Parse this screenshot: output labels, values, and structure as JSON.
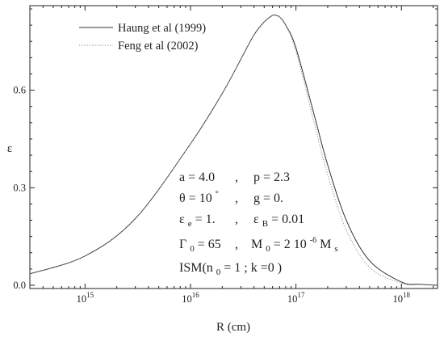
{
  "chart_data": {
    "type": "line",
    "xlabel": "R (cm)",
    "ylabel": "ε",
    "x_scale": "log",
    "xlim": [
      300000000000000.0,
      2.2e+18
    ],
    "ylim": [
      -0.01,
      0.86
    ],
    "x_ticks": [
      {
        "value": 1000000000000000.0,
        "base": "10",
        "exp": "15"
      },
      {
        "value": 1e+16,
        "base": "10",
        "exp": "16"
      },
      {
        "value": 1e+17,
        "base": "10",
        "exp": "17"
      },
      {
        "value": 1e+18,
        "base": "10",
        "exp": "18"
      }
    ],
    "y_ticks": [
      {
        "value": 0.0,
        "label": "0.0"
      },
      {
        "value": 0.3,
        "label": "0.3"
      },
      {
        "value": 0.6,
        "label": "0.6"
      }
    ],
    "legend": {
      "position": "top-left"
    },
    "series": [
      {
        "name": "Haung et al (1999)",
        "style": "solid",
        "color": "#333333",
        "x": [
          300000000000000.0,
          1000000000000000.0,
          3000000000000000.0,
          1e+16,
          2e+16,
          3e+16,
          4e+16,
          5e+16,
          6e+16,
          6.5e+16,
          7e+16,
          8e+16,
          1e+17,
          1.5e+17,
          2e+17,
          3e+17,
          5e+17,
          1e+18,
          1.5e+18,
          2.2e+18
        ],
        "y": [
          0.035,
          0.09,
          0.205,
          0.435,
          0.59,
          0.695,
          0.77,
          0.81,
          0.83,
          0.83,
          0.825,
          0.8,
          0.73,
          0.52,
          0.37,
          0.2,
          0.075,
          0.01,
          0.003,
          0.0
        ]
      },
      {
        "name": "Feng et al (2002)",
        "style": "dotted",
        "color": "#8a8a8a",
        "x": [
          300000000000000.0,
          1000000000000000.0,
          3000000000000000.0,
          1e+16,
          2e+16,
          3e+16,
          4e+16,
          5e+16,
          6e+16,
          6.5e+16,
          7e+16,
          8e+16,
          1e+17,
          1.5e+17,
          2e+17,
          3e+17,
          5e+17,
          1e+18,
          1.5e+18,
          2.2e+18
        ],
        "y": [
          0.035,
          0.09,
          0.205,
          0.435,
          0.59,
          0.695,
          0.77,
          0.81,
          0.83,
          0.83,
          0.825,
          0.8,
          0.72,
          0.495,
          0.34,
          0.17,
          0.055,
          0.006,
          0.002,
          0.0
        ]
      }
    ],
    "annotations": {
      "line1": {
        "left": "a = 4.0",
        "sep": ",",
        "right": "p = 2.3"
      },
      "line2": {
        "theta": "θ = 10",
        "deg": "°",
        "sep": ",",
        "right": "g = 0."
      },
      "line3": {
        "eps_e_sym": "ε",
        "eps_e_sub": "e",
        "eps_e_val": " = 1.",
        "sep": ",",
        "eps_b_sym": "ε",
        "eps_b_sub": "B",
        "eps_b_val": " = 0.01"
      },
      "line4": {
        "gamma_sym": "Γ",
        "gamma_sub": "0",
        "gamma_val": " = 65",
        "sep": ",",
        "m_sym": "M",
        "m_sub": "0",
        "m_val": " = 2 10",
        "m_exp": "-6",
        "m_unit": " M",
        "m_unit_sub": "s"
      },
      "line5": {
        "pre": "ISM(n",
        "sub": "0",
        "post": " = 1 ; k =0 )"
      }
    }
  }
}
